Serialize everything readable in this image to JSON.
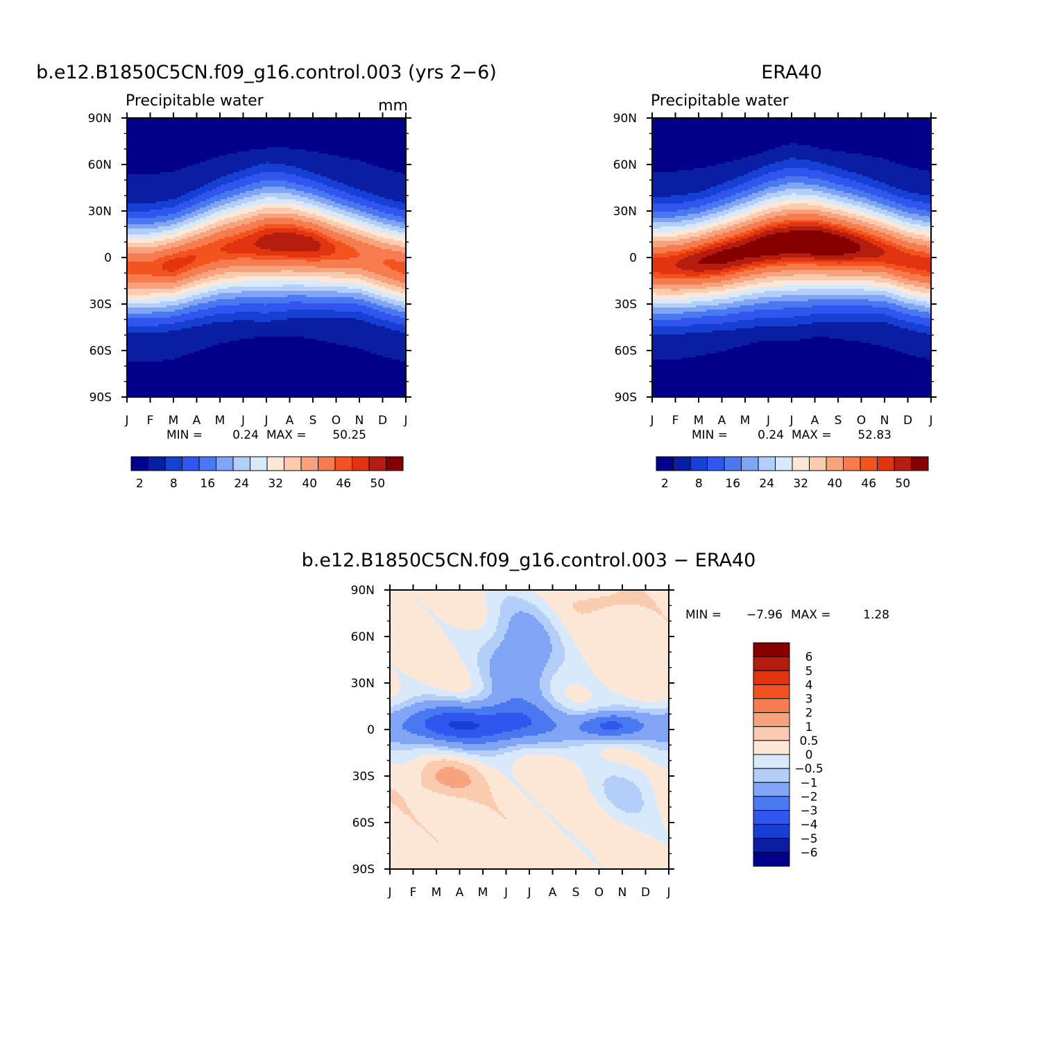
{
  "colors": {
    "seq": [
      "#00008b",
      "#0a1ea3",
      "#1640d4",
      "#2f57ef",
      "#4a78f0",
      "#80a5f5",
      "#b4cefa",
      "#d8e9fc",
      "#fde8d7",
      "#fbcbb0",
      "#f7a37e",
      "#f67b4e",
      "#f2531f",
      "#e1340f",
      "#b51e0f",
      "#860000"
    ],
    "div": [
      "#00008b",
      "#0a1ea3",
      "#1640d4",
      "#2f57ef",
      "#4a78f0",
      "#80a5f5",
      "#b4cefa",
      "#d8e9fc",
      "#fde8d7",
      "#fbcbb0",
      "#f7a37e",
      "#f67b4e",
      "#f2531f",
      "#e1340f",
      "#b51e0f",
      "#860000"
    ]
  },
  "chart_data": [
    {
      "type": "heatmap",
      "id": "model",
      "title": "b.e12.B1850C5CN.f09_g16.control.003 (yrs 2−6)",
      "subtitle": "Precipitable water",
      "units": "mm",
      "xticks": [
        "J",
        "F",
        "M",
        "A",
        "M",
        "J",
        "J",
        "A",
        "S",
        "O",
        "N",
        "D",
        "J"
      ],
      "yticks": [
        "90N",
        "60N",
        "30N",
        "0",
        "30S",
        "60S",
        "90S"
      ],
      "ylim": [
        -90,
        90
      ],
      "stats": {
        "min_label": "MIN =",
        "min": "0.24",
        "max_label": "MAX =",
        "max": "50.25"
      },
      "levels": [
        2,
        5,
        8,
        12,
        16,
        20,
        24,
        28,
        32,
        36,
        40,
        44,
        46,
        48,
        50
      ],
      "colorbar_labels": [
        "2",
        "8",
        "16",
        "24",
        "32",
        "40",
        "46",
        "50"
      ],
      "field": {
        "max": 50.25,
        "peak_lat": [
          -7,
          -7,
          -5,
          0,
          5,
          8,
          10,
          10,
          8,
          5,
          2,
          -3,
          -7
        ],
        "width": [
          20,
          20,
          20,
          21,
          22,
          23,
          24,
          23,
          22,
          21,
          20,
          20,
          20
        ],
        "peak_value": [
          45,
          45,
          47,
          46,
          46,
          47,
          49,
          50,
          49,
          46,
          44,
          44,
          45
        ]
      }
    },
    {
      "type": "heatmap",
      "id": "obs",
      "title": "ERA40",
      "subtitle": "Precipitable water",
      "units": "",
      "xticks": [
        "J",
        "F",
        "M",
        "A",
        "M",
        "J",
        "J",
        "A",
        "S",
        "O",
        "N",
        "D",
        "J"
      ],
      "yticks": [
        "90N",
        "60N",
        "30N",
        "0",
        "30S",
        "60S",
        "90S"
      ],
      "ylim": [
        -90,
        90
      ],
      "stats": {
        "min_label": "MIN =",
        "min": "0.24",
        "max_label": "MAX =",
        "max": "52.83"
      },
      "levels": [
        2,
        5,
        8,
        12,
        16,
        20,
        24,
        28,
        32,
        36,
        40,
        44,
        46,
        48,
        50
      ],
      "colorbar_labels": [
        "2",
        "8",
        "16",
        "24",
        "32",
        "40",
        "46",
        "50"
      ],
      "field": {
        "max": 52.83,
        "peak_lat": [
          -5,
          -5,
          -3,
          0,
          4,
          8,
          10,
          10,
          8,
          6,
          3,
          -2,
          -5
        ],
        "width": [
          21,
          21,
          21,
          22,
          23,
          24,
          25,
          24,
          23,
          22,
          21,
          21,
          21
        ],
        "peak_value": [
          47,
          48,
          50,
          51,
          51,
          52,
          52,
          53,
          52,
          50,
          48,
          47,
          47
        ]
      }
    },
    {
      "type": "heatmap",
      "id": "diff",
      "title": "b.e12.B1850C5CN.f09_g16.control.003 − ERA40",
      "xticks": [
        "J",
        "F",
        "M",
        "A",
        "M",
        "J",
        "J",
        "A",
        "S",
        "O",
        "N",
        "D",
        "J"
      ],
      "yticks": [
        "90N",
        "60N",
        "30N",
        "0",
        "30S",
        "60S",
        "90S"
      ],
      "ylim": [
        -90,
        90
      ],
      "stats": {
        "min_label": "MIN =",
        "min": "−7.96",
        "max_label": "MAX =",
        "max": "1.28"
      },
      "levels": [
        -6,
        -5,
        -4,
        -3,
        -2,
        -1,
        -0.5,
        0,
        0.5,
        1,
        2,
        3,
        4,
        5,
        6
      ],
      "colorbar_labels": [
        "6",
        "5",
        "4",
        "3",
        "2",
        "1",
        "0.5",
        "0",
        "−0.5",
        "−1",
        "−2",
        "−3",
        "−4",
        "−5",
        "−6"
      ],
      "field": {
        "min": -7.96,
        "max": 1.28
      }
    }
  ]
}
